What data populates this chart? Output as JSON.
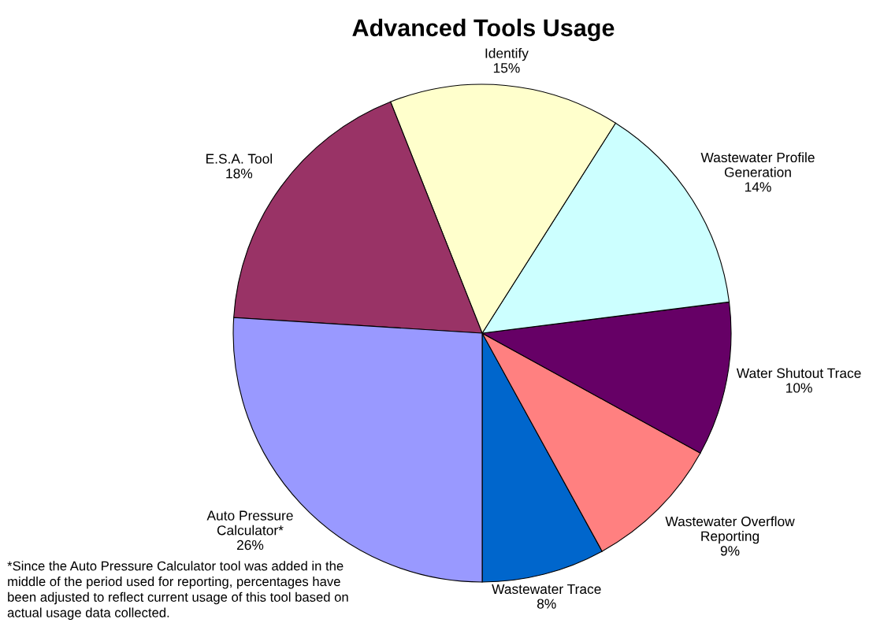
{
  "chart_data": {
    "type": "pie",
    "title": "Advanced Tools Usage",
    "categories": [
      "Wastewater Trace",
      "Wastewater Overflow\nReporting",
      "Water Shutout Trace",
      "Wastewater Profile\nGeneration",
      "Identify",
      "E.S.A. Tool",
      "Auto Pressure\nCalculator*"
    ],
    "values": [
      8,
      9,
      10,
      14,
      15,
      18,
      26
    ],
    "value_labels": [
      "8%",
      "9%",
      "10%",
      "14%",
      "15%",
      "18%",
      "26%"
    ],
    "colors": [
      "#0066cc",
      "#ff8080",
      "#660066",
      "#ccffff",
      "#ffffcc",
      "#993366",
      "#9999ff"
    ],
    "annotations": [
      "*Since the Auto Pressure Calculator tool was added in the\nmiddle of the period used for reporting, percentages have\nbeen adjusted to reflect current usage of this tool based on\nactual usage data collected."
    ]
  }
}
